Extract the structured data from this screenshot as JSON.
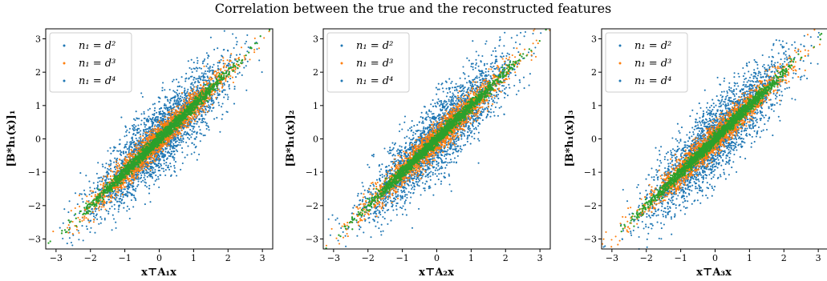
{
  "figure": {
    "title": "Correlation between the true and the reconstructed features"
  },
  "chart_data": [
    {
      "type": "scatter",
      "xlabel": "x⊤A₁x",
      "ylabel": "[B*h₁(x)]₁",
      "xlim": [
        -3.3,
        3.3
      ],
      "ylim": [
        -3.3,
        3.3
      ],
      "xticks": [
        "−3",
        "−2",
        "−1",
        "0",
        "1",
        "2",
        "3"
      ],
      "yticks": [
        "−3",
        "−2",
        "−1",
        "0",
        "1",
        "2",
        "3"
      ],
      "legend_position": "top-left",
      "grid": false,
      "series": [
        {
          "name": "n₁ = d²",
          "color": "#1f77b4",
          "spread": 0.55
        },
        {
          "name": "n₁ = d³",
          "color": "#ff7f0e",
          "spread": 0.22
        },
        {
          "name": "n₁ = d⁴",
          "color": "#2ca02c",
          "spread": 0.09
        }
      ]
    },
    {
      "type": "scatter",
      "xlabel": "x⊤A₂x",
      "ylabel": "[B*h₁(x)]₂",
      "xlim": [
        -3.3,
        3.3
      ],
      "ylim": [
        -3.3,
        3.3
      ],
      "xticks": [
        "−3",
        "−2",
        "−1",
        "0",
        "1",
        "2",
        "3"
      ],
      "yticks": [
        "−3",
        "−2",
        "−1",
        "0",
        "1",
        "2",
        "3"
      ],
      "legend_position": "top-left",
      "grid": false,
      "series": [
        {
          "name": "n₁ = d²",
          "color": "#1f77b4",
          "spread": 0.55
        },
        {
          "name": "n₁ = d³",
          "color": "#ff7f0e",
          "spread": 0.22
        },
        {
          "name": "n₁ = d⁴",
          "color": "#2ca02c",
          "spread": 0.09
        }
      ]
    },
    {
      "type": "scatter",
      "xlabel": "x⊤A₃x",
      "ylabel": "[B*h₁(x)]₃",
      "xlim": [
        -3.3,
        3.3
      ],
      "ylim": [
        -3.3,
        3.3
      ],
      "xticks": [
        "−3",
        "−2",
        "−1",
        "0",
        "1",
        "2",
        "3"
      ],
      "yticks": [
        "−3",
        "−2",
        "−1",
        "0",
        "1",
        "2",
        "3"
      ],
      "legend_position": "top-left",
      "grid": false,
      "series": [
        {
          "name": "n₁ = d²",
          "color": "#1f77b4",
          "spread": 0.55
        },
        {
          "name": "n₁ = d³",
          "color": "#ff7f0e",
          "spread": 0.22
        },
        {
          "name": "n₁ = d⁴",
          "color": "#2ca02c",
          "spread": 0.09
        }
      ]
    }
  ]
}
